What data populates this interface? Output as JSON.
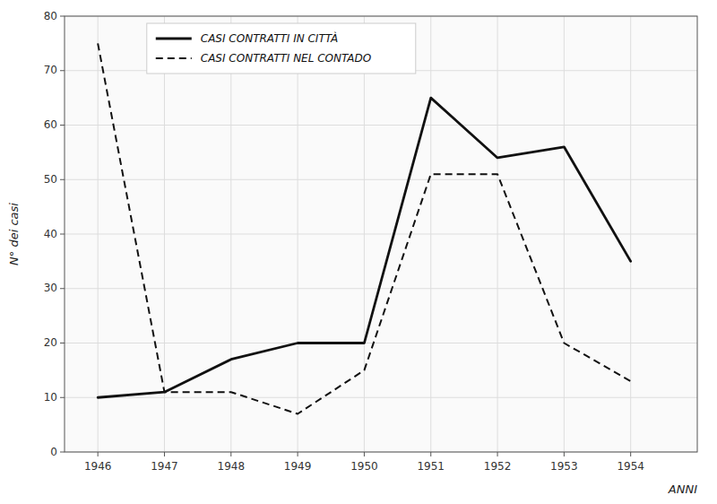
{
  "chart_data": {
    "type": "line",
    "x": [
      1946,
      1947,
      1948,
      1949,
      1950,
      1951,
      1952,
      1953,
      1954
    ],
    "series": [
      {
        "name": "CASI CONTRATTI IN CITTÀ",
        "color": "#111111",
        "line_style": "solid",
        "values": [
          10,
          11,
          17,
          20,
          20,
          65,
          54,
          56,
          35
        ]
      },
      {
        "name": "CASI CONTRATTI NEL CONTADO",
        "color": "#111111",
        "line_style": "dashed",
        "values": [
          75,
          11,
          11,
          7,
          15,
          51,
          51,
          20,
          13
        ]
      }
    ],
    "xlabel": "ANNI",
    "ylabel": "N° dei casi",
    "xlim": [
      1945.5,
      1955.0
    ],
    "xticks": [
      1946,
      1947,
      1948,
      1949,
      1950,
      1951,
      1952,
      1953,
      1954
    ],
    "ylim": [
      0,
      80
    ],
    "yticks": [
      0,
      10,
      20,
      30,
      40,
      50,
      60,
      70,
      80
    ],
    "grid": true,
    "legend": "upper left"
  }
}
